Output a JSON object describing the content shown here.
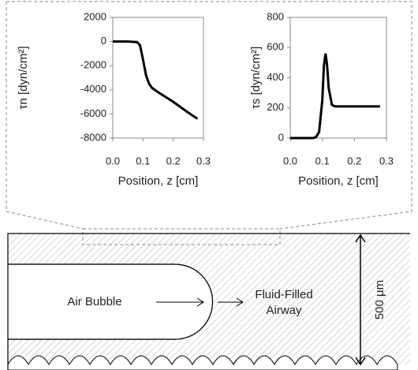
{
  "chart_data": [
    {
      "type": "line",
      "y_label": "τn [dyn/cm²]",
      "x_label": "Position, z [cm]",
      "xlim": [
        0,
        0.3
      ],
      "xticks": [
        {
          "value": 0,
          "label": "0.0"
        },
        0.1,
        0.2,
        0.3
      ],
      "ylim": [
        -8000,
        2000
      ],
      "yticks": [
        -8000,
        -6000,
        -4000,
        -2000,
        0,
        2000
      ],
      "color": "#000000",
      "x": [
        0,
        0.05,
        0.08,
        0.09,
        0.1,
        0.11,
        0.12,
        0.13,
        0.15,
        0.2,
        0.25,
        0.28
      ],
      "values": [
        0,
        0,
        -50,
        -300,
        -1500,
        -2800,
        -3500,
        -3850,
        -4200,
        -5000,
        -5900,
        -6400
      ]
    },
    {
      "type": "line",
      "y_label": "τs [dyn/cm²]",
      "x_label": "Position, z [cm]",
      "xlim": [
        0,
        0.3
      ],
      "xticks": [
        {
          "value": 0,
          "label": "0.0"
        },
        0.1,
        0.2,
        0.3
      ],
      "ylim": [
        0,
        800
      ],
      "yticks": [
        0,
        200,
        400,
        600,
        800
      ],
      "color": "#000000",
      "x": [
        0,
        0.07,
        0.08,
        0.09,
        0.1,
        0.105,
        0.11,
        0.115,
        0.12,
        0.13,
        0.14,
        0.2,
        0.28
      ],
      "values": [
        0,
        0,
        5,
        40,
        250,
        480,
        560,
        480,
        330,
        220,
        210,
        210,
        210
      ]
    }
  ],
  "diagram": {
    "bubble_label": "Air Bubble",
    "fluid_label": [
      "Fluid-Filled",
      "Airway"
    ],
    "width_label": "500 µm"
  }
}
